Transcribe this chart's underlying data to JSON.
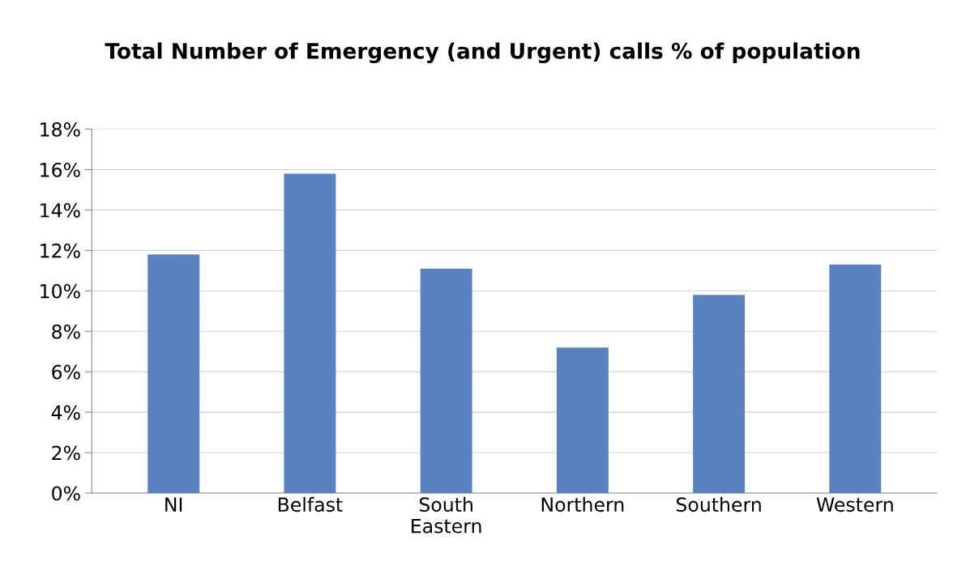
{
  "chart_data": {
    "type": "bar",
    "title": "Total Number of Emergency (and Urgent) calls % of population",
    "categories": [
      "NI",
      "Belfast",
      "South\nEastern",
      "Northern",
      "Southern",
      "Western"
    ],
    "values": [
      11.8,
      15.8,
      11.1,
      7.2,
      9.8,
      11.3
    ],
    "color": "#5b82c0",
    "ylim": [
      0,
      18
    ],
    "yticks": [
      {
        "value": 0,
        "label": "0%"
      },
      {
        "value": 2,
        "label": "2%"
      },
      {
        "value": 4,
        "label": "4%"
      },
      {
        "value": 6,
        "label": "6%"
      },
      {
        "value": 8,
        "label": "8%"
      },
      {
        "value": 10,
        "label": "10%"
      },
      {
        "value": 12,
        "label": "12%"
      },
      {
        "value": 14,
        "label": "14%"
      },
      {
        "value": 16,
        "label": "16%"
      },
      {
        "value": 18,
        "label": "18%"
      }
    ],
    "grid": "y"
  }
}
